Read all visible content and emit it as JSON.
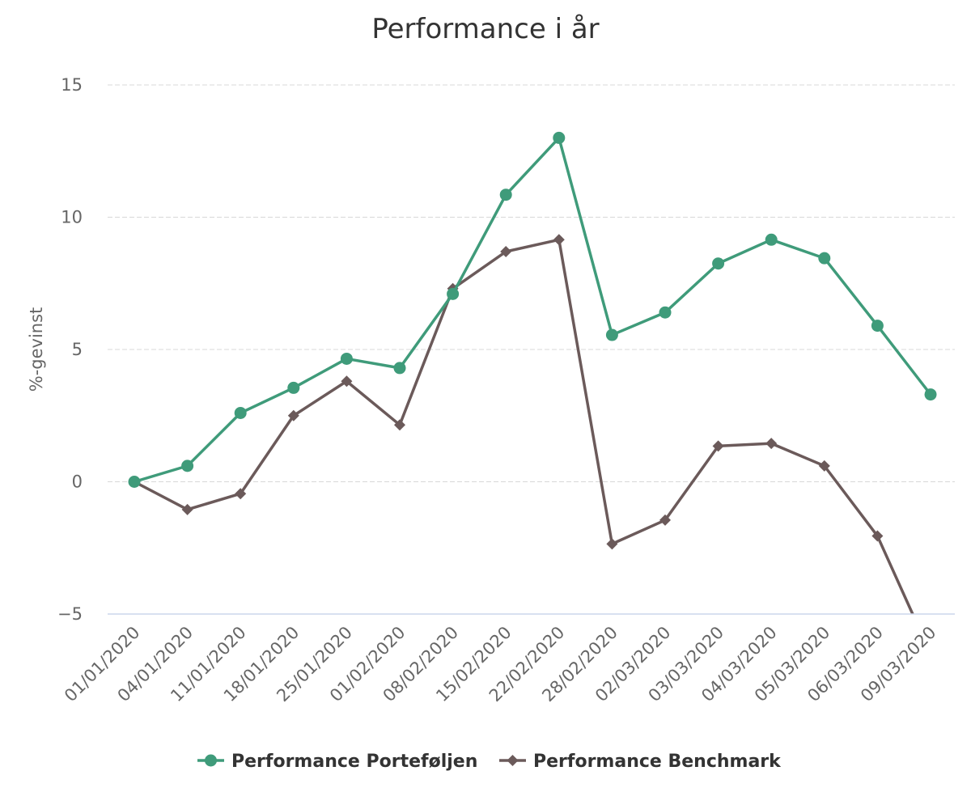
{
  "chart_data": {
    "type": "line",
    "title": "Performance i år",
    "xlabel": "",
    "ylabel": "%-gevinst",
    "ylim": [
      -5,
      15
    ],
    "yticks": [
      15,
      10,
      5,
      0,
      -5
    ],
    "ytick_labels": [
      "15",
      "10",
      "5",
      "0",
      "−5"
    ],
    "grid": true,
    "legend_position": "bottom-center",
    "categories": [
      "01/01/2020",
      "04/01/2020",
      "11/01/2020",
      "18/01/2020",
      "25/01/2020",
      "01/02/2020",
      "08/02/2020",
      "15/02/2020",
      "22/02/2020",
      "28/02/2020",
      "02/03/2020",
      "03/03/2020",
      "04/03/2020",
      "05/03/2020",
      "06/03/2020",
      "09/03/2020"
    ],
    "series": [
      {
        "name": "Performance Porteføljen",
        "color": "#3f9b7a",
        "marker": "circle",
        "values": [
          0,
          0.6,
          2.6,
          3.55,
          4.65,
          4.3,
          7.1,
          10.85,
          13,
          5.55,
          6.4,
          8.25,
          9.15,
          8.45,
          5.9,
          3.3
        ]
      },
      {
        "name": "Performance Benchmark",
        "color": "#6b5a5a",
        "marker": "diamond",
        "values": [
          0,
          -1.05,
          -0.45,
          2.5,
          3.8,
          2.15,
          7.3,
          8.7,
          9.15,
          -2.35,
          -1.45,
          1.35,
          1.45,
          0.6,
          -2.05,
          -6.5
        ]
      }
    ]
  }
}
